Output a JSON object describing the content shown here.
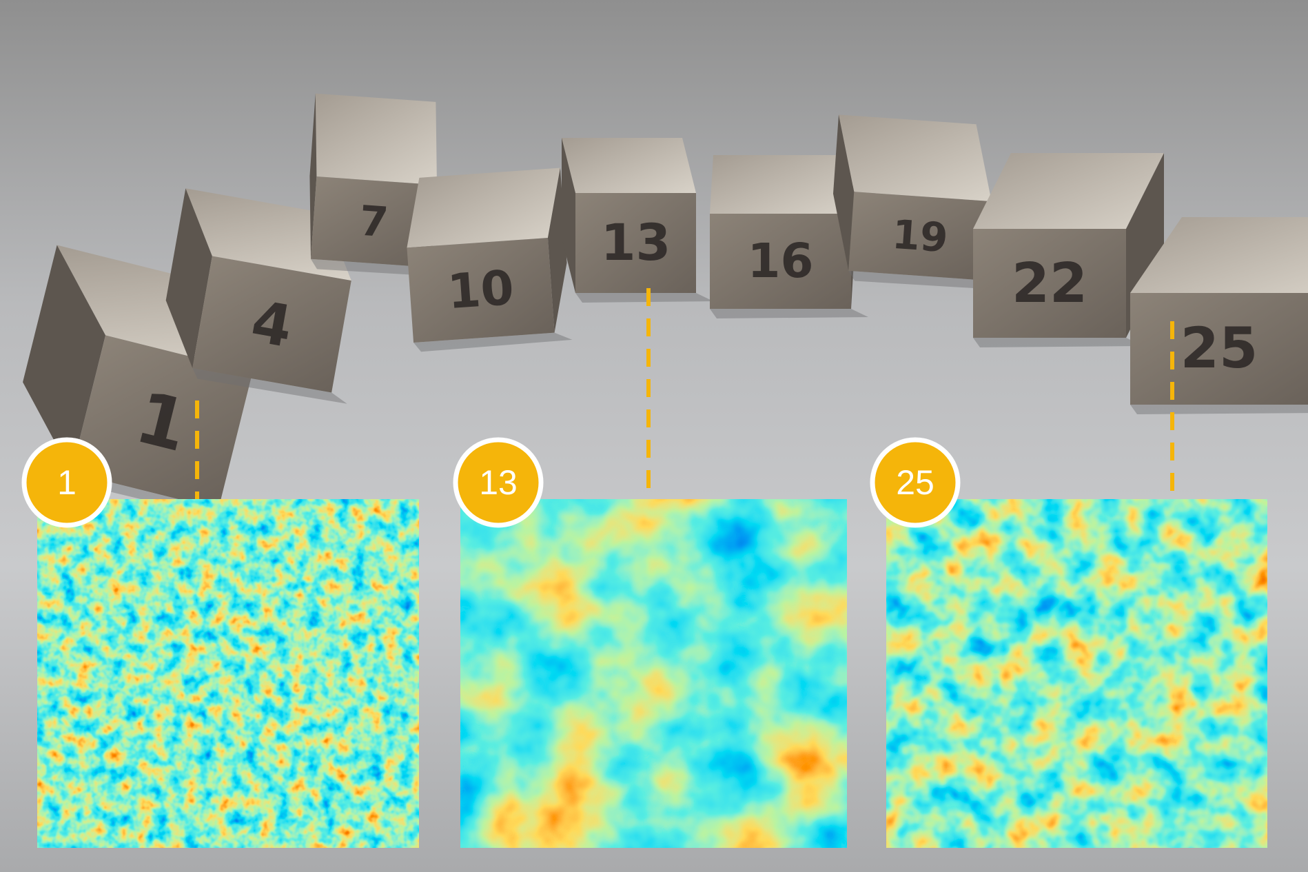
{
  "cubes": [
    {
      "label": "1"
    },
    {
      "label": "4"
    },
    {
      "label": "7"
    },
    {
      "label": "10"
    },
    {
      "label": "13"
    },
    {
      "label": "16"
    },
    {
      "label": "19"
    },
    {
      "label": "22"
    },
    {
      "label": "25"
    }
  ],
  "badges": [
    {
      "label": "1"
    },
    {
      "label": "13"
    },
    {
      "label": "25"
    }
  ]
}
